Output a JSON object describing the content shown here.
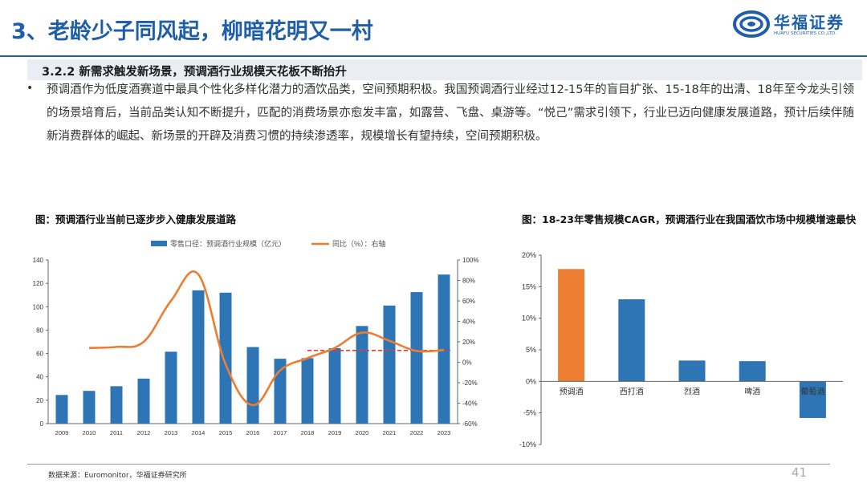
{
  "header": {
    "title": "3、老龄少子同风起，柳暗花明又一村",
    "logo_name": "华福证券",
    "logo_sub": "HUAFU SECURITIES CO.,LTD."
  },
  "section": {
    "heading": "3.2.2 新需求触发新场景，预调酒行业规模天花板不断抬升",
    "bullet": "•",
    "paragraph": "预调酒作为低度酒赛道中最具个性化多样化潜力的酒饮品类，空间预期积极。我国预调酒行业经过12-15年的盲目扩张、15-18年的出清、18年至今龙头引领的场景培育后，当前品类认知不断提升，匹配的消费场景亦愈发丰富，如露营、飞盘、桌游等。“悦己”需求引领下，行业已迈向健康发展道路，预计后续伴随新消费群体的崛起、新场景的开辟及消费习惯的持续渗透率，规模增长有望持续，空间预期积极。"
  },
  "captions": {
    "left": "图：预调酒行业当前已逐步步入健康发展道路",
    "right": "图：18-23年零售规模CAGR，预调酒行业在我国酒饮市场中规模增速最快"
  },
  "footer": {
    "source": "数据来源：Euromonitor，华福证券研究所",
    "page": "41"
  },
  "colors": {
    "brand_blue": "#1f5fa8",
    "bar_blue": "#2e75b6",
    "line_orange": "#ed7d31",
    "dash_red": "#e03c31"
  },
  "chart_data": [
    {
      "type": "bar",
      "title": "",
      "categories": [
        "2009",
        "2010",
        "2011",
        "2012",
        "2013",
        "2014",
        "2015",
        "2016",
        "2017",
        "2018",
        "2019",
        "2020",
        "2021",
        "2022",
        "2023"
      ],
      "series": [
        {
          "name": "零售口径：预调酒行业规模（亿元）",
          "type": "bar",
          "axis": "left",
          "values": [
            24.5,
            28,
            32,
            38.5,
            61.5,
            114,
            112,
            65.5,
            55.5,
            56,
            64.5,
            83.5,
            101,
            112.5,
            127.5
          ]
        },
        {
          "name": "同比（%）：右轴",
          "type": "line",
          "axis": "right",
          "values": [
            null,
            14,
            15,
            20,
            60,
            86,
            -2,
            -42,
            -8,
            4,
            14,
            29,
            21,
            11,
            12
          ]
        }
      ],
      "reference_line": {
        "axis": "right",
        "from": "2018",
        "to": "2023",
        "value": 11.5,
        "style": "dashed"
      },
      "left_axis": {
        "ylim": [
          0,
          140
        ],
        "ticks": [
          "0",
          "20",
          "40",
          "60",
          "80",
          "100",
          "120",
          "140"
        ]
      },
      "right_axis": {
        "ylim": [
          -60,
          100
        ],
        "ticks": [
          "-60%",
          "-40%",
          "-20%",
          "0%",
          "20%",
          "40%",
          "60%",
          "80%",
          "100%"
        ]
      },
      "legend_position": "top"
    },
    {
      "type": "bar",
      "title": "",
      "categories": [
        "预调酒",
        "西打酒",
        "烈酒",
        "啤酒",
        "葡萄酒"
      ],
      "values": [
        17.8,
        13,
        3.3,
        3.2,
        -5.8
      ],
      "highlight_index": 0,
      "ylim": [
        -10,
        20
      ],
      "ticks": [
        "-10%",
        "-5%",
        "0%",
        "5%",
        "10%",
        "15%",
        "20%"
      ]
    }
  ]
}
